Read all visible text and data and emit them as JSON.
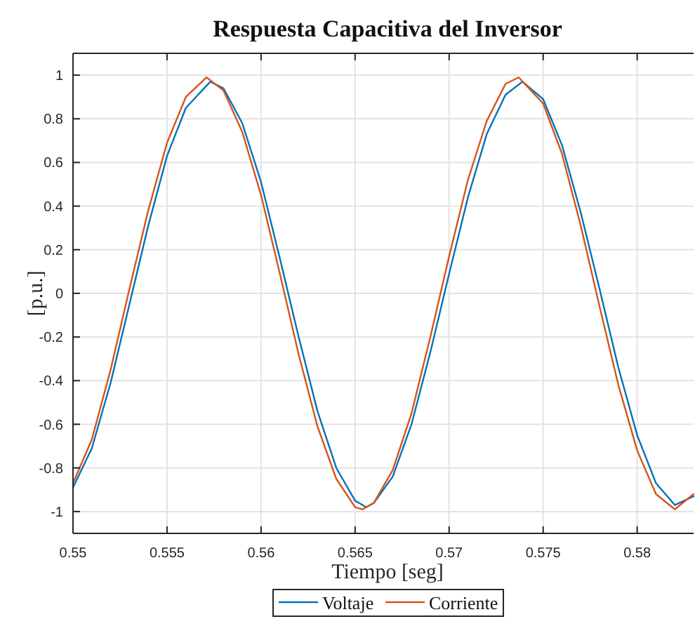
{
  "chart_data": {
    "type": "line",
    "title": "Respuesta Capacitiva del Inversor",
    "xlabel": "Tiempo [seg]",
    "ylabel": "[p.u.]",
    "xlim": [
      0.55,
      0.583
    ],
    "xticks": [
      0.55,
      0.555,
      0.56,
      0.565,
      0.57,
      0.575,
      0.58
    ],
    "ylim": [
      -1.1,
      1.1
    ],
    "yticks": [
      -1,
      -0.8,
      -0.6,
      -0.4,
      -0.2,
      0,
      0.2,
      0.4,
      0.6,
      0.8,
      1
    ],
    "grid": true,
    "legend": "bottom",
    "marker": "none",
    "line_style": "solid",
    "series": [
      {
        "name": "Voltaje",
        "color": "#0072bd",
        "x": [
          0.55,
          0.551,
          0.552,
          0.553,
          0.554,
          0.555,
          0.556,
          0.5573,
          0.558,
          0.559,
          0.56,
          0.561,
          0.562,
          0.563,
          0.564,
          0.565,
          0.5656,
          0.566,
          0.567,
          0.568,
          0.569,
          0.57,
          0.571,
          0.572,
          0.573,
          0.5739,
          0.575,
          0.576,
          0.577,
          0.578,
          0.579,
          0.58,
          0.581,
          0.582,
          0.583
        ],
        "values": [
          -0.89,
          -0.71,
          -0.41,
          -0.05,
          0.31,
          0.63,
          0.85,
          0.97,
          0.94,
          0.78,
          0.51,
          0.16,
          -0.2,
          -0.54,
          -0.8,
          -0.95,
          -0.98,
          -0.96,
          -0.84,
          -0.6,
          -0.27,
          0.09,
          0.44,
          0.73,
          0.91,
          0.97,
          0.89,
          0.68,
          0.37,
          0.02,
          -0.34,
          -0.65,
          -0.87,
          -0.97,
          -0.93
        ]
      },
      {
        "name": "Corriente",
        "color": "#d95319",
        "x": [
          0.55,
          0.551,
          0.552,
          0.553,
          0.554,
          0.555,
          0.556,
          0.5571,
          0.558,
          0.559,
          0.56,
          0.561,
          0.562,
          0.563,
          0.564,
          0.565,
          0.5654,
          0.566,
          0.567,
          0.568,
          0.569,
          0.57,
          0.571,
          0.572,
          0.573,
          0.5737,
          0.575,
          0.576,
          0.577,
          0.578,
          0.579,
          0.58,
          0.581,
          0.582,
          0.583
        ],
        "values": [
          -0.87,
          -0.67,
          -0.35,
          0.02,
          0.38,
          0.69,
          0.9,
          0.99,
          0.93,
          0.74,
          0.45,
          0.09,
          -0.28,
          -0.61,
          -0.85,
          -0.98,
          -0.99,
          -0.96,
          -0.81,
          -0.55,
          -0.2,
          0.17,
          0.52,
          0.79,
          0.96,
          0.99,
          0.87,
          0.64,
          0.31,
          -0.06,
          -0.42,
          -0.72,
          -0.92,
          -0.99,
          -0.92
        ]
      }
    ]
  }
}
